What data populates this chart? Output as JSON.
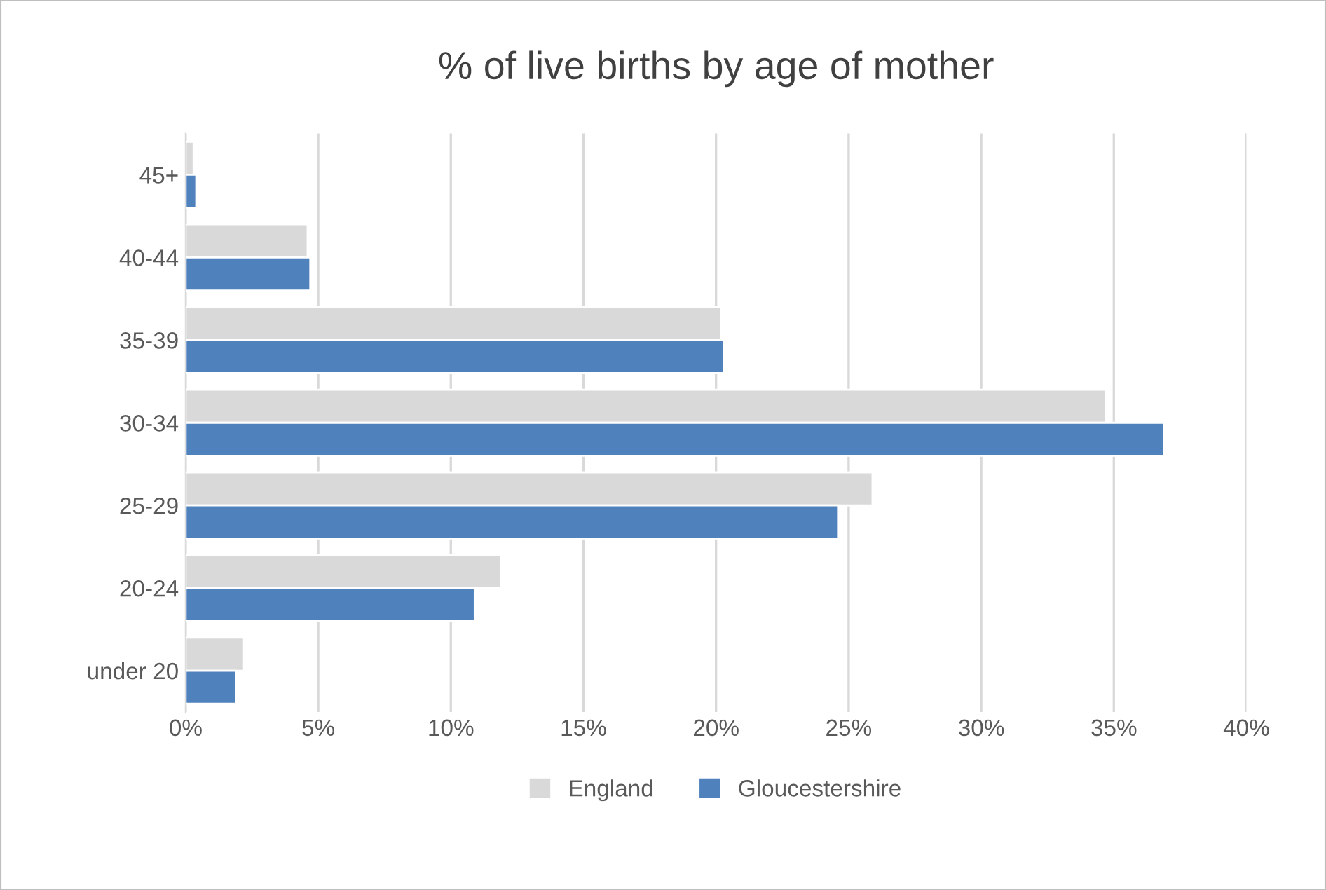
{
  "chart_data": {
    "type": "bar",
    "orientation": "horizontal",
    "title": "% of live births by age of mother",
    "categories": [
      "45+",
      "40-44",
      "35-39",
      "30-34",
      "25-29",
      "20-24",
      "under 20"
    ],
    "series": [
      {
        "name": "England",
        "color": "#d9d9d9",
        "values": [
          0.3,
          4.6,
          20.2,
          34.7,
          25.9,
          11.9,
          2.2
        ]
      },
      {
        "name": "Gloucestershire",
        "color": "#4f81bd",
        "values": [
          0.4,
          4.7,
          20.3,
          36.9,
          24.6,
          10.9,
          1.9
        ]
      }
    ],
    "xlim": [
      0,
      40
    ],
    "xticks": [
      {
        "value": 0,
        "label": "0%"
      },
      {
        "value": 5,
        "label": "5%"
      },
      {
        "value": 10,
        "label": "10%"
      },
      {
        "value": 15,
        "label": "15%"
      },
      {
        "value": 20,
        "label": "20%"
      },
      {
        "value": 25,
        "label": "25%"
      },
      {
        "value": 30,
        "label": "30%"
      },
      {
        "value": 35,
        "label": "35%"
      },
      {
        "value": 40,
        "label": "40%"
      }
    ],
    "grid": "x",
    "legend": "bottom"
  }
}
